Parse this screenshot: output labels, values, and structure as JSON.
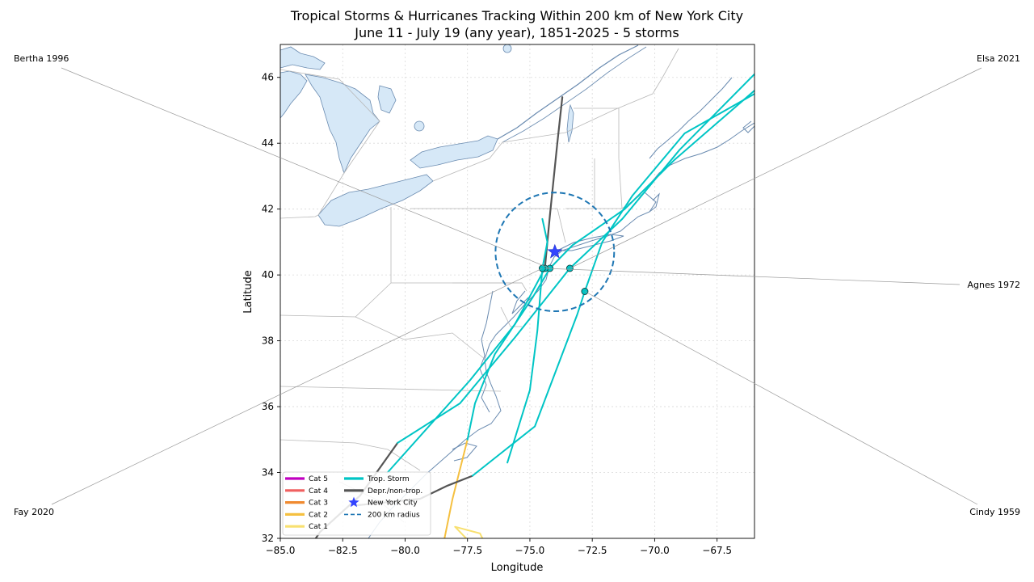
{
  "title": {
    "line1": "Tropical Storms & Hurricanes Tracking Within 200 km of New York City",
    "line2": "June 11 - July 19 (any year), 1851-2025  -  5 storms"
  },
  "axes": {
    "xlabel": "Longitude",
    "ylabel": "Latitude",
    "xlim": [
      -85.0,
      -66.0
    ],
    "ylim": [
      32.0,
      47.0
    ],
    "xticks": [
      {
        "value": -85.0,
        "label": "−85.0"
      },
      {
        "value": -82.5,
        "label": "−82.5"
      },
      {
        "value": -80.0,
        "label": "−80.0"
      },
      {
        "value": -77.5,
        "label": "−77.5"
      },
      {
        "value": -75.0,
        "label": "−75.0"
      },
      {
        "value": -72.5,
        "label": "−72.5"
      },
      {
        "value": -70.0,
        "label": "−70.0"
      },
      {
        "value": -67.5,
        "label": "−67.5"
      }
    ],
    "yticks": [
      {
        "value": 32,
        "label": "32"
      },
      {
        "value": 34,
        "label": "34"
      },
      {
        "value": 36,
        "label": "36"
      },
      {
        "value": 38,
        "label": "38"
      },
      {
        "value": 40,
        "label": "40"
      },
      {
        "value": 42,
        "label": "42"
      },
      {
        "value": 44,
        "label": "44"
      },
      {
        "value": 46,
        "label": "46"
      }
    ],
    "grid": true
  },
  "colors": {
    "cat5": "#c000c0",
    "cat4": "#f06060",
    "cat3": "#f08a30",
    "cat2": "#f5c040",
    "cat1": "#f8e070",
    "ts": "#00c5c5",
    "depression": "#555555",
    "nyc": "#3344ff",
    "radius": "#1f77b4",
    "water": "#d6e8f7",
    "coast": "#6a8bb0",
    "border": "#b8b8b8",
    "grid": "#d9d9d9",
    "leader": "#999999"
  },
  "nyc": {
    "lon": -74.0,
    "lat": 40.7
  },
  "radius_km": 200,
  "chart_data": {
    "type": "map",
    "title": "Tropical Storms & Hurricanes Tracking Within 200 km of New York City",
    "subtitle": "June 11 - July 19 (any year), 1851-2025  -  5 storms",
    "xlabel": "Longitude",
    "ylabel": "Latitude",
    "xlim": [
      -85.0,
      -66.0
    ],
    "ylim": [
      32.0,
      47.0
    ],
    "storms": [
      {
        "name": "Bertha 1996",
        "label_side": "left",
        "closest": [
          -74.2,
          40.2
        ],
        "segments": [
          {
            "cat": "cat1",
            "points": [
              [
                -77.1,
                31.0
              ],
              [
                -77.3,
                31.8
              ],
              [
                -78.0,
                32.35
              ],
              [
                -77.0,
                32.15
              ],
              [
                -76.9,
                32.0
              ]
            ]
          },
          {
            "cat": "cat2",
            "points": [
              [
                -78.5,
                31.7
              ],
              [
                -78.1,
                33.2
              ],
              [
                -77.5,
                35.0
              ]
            ]
          },
          {
            "cat": "ts",
            "points": [
              [
                -77.5,
                35.0
              ],
              [
                -77.2,
                36.1
              ],
              [
                -76.4,
                37.6
              ],
              [
                -74.9,
                39.3
              ],
              [
                -74.2,
                40.2
              ],
              [
                -73.3,
                40.9
              ],
              [
                -71.2,
                42.0
              ],
              [
                -69.2,
                43.5
              ],
              [
                -66.0,
                45.6
              ]
            ]
          }
        ]
      },
      {
        "name": "Elsa 2021",
        "label_side": "right",
        "closest": [
          -73.4,
          40.2
        ],
        "segments": [
          {
            "cat": "depression",
            "points": [
              [
                -84.3,
                31.2
              ],
              [
                -83.4,
                32.2
              ],
              [
                -81.8,
                33.3
              ],
              [
                -80.3,
                34.9
              ]
            ]
          },
          {
            "cat": "ts",
            "points": [
              [
                -80.3,
                34.9
              ],
              [
                -77.8,
                36.1
              ],
              [
                -75.6,
                38.1
              ],
              [
                -73.4,
                40.2
              ],
              [
                -71.3,
                41.7
              ],
              [
                -69.0,
                43.8
              ],
              [
                -66.0,
                46.1
              ]
            ]
          }
        ]
      },
      {
        "name": "Agnes 1972",
        "label_side": "right",
        "closest": [
          -74.4,
          40.2
        ],
        "segments": [
          {
            "cat": "ts",
            "points": [
              [
                -80.7,
                34.0
              ],
              [
                -77.4,
                36.8
              ],
              [
                -75.6,
                38.5
              ],
              [
                -74.4,
                40.2
              ]
            ]
          },
          {
            "cat": "depression",
            "points": [
              [
                -74.4,
                40.2
              ],
              [
                -74.2,
                41.8
              ],
              [
                -73.9,
                44.0
              ],
              [
                -73.7,
                45.4
              ]
            ]
          }
        ]
      },
      {
        "name": "Fay 2020",
        "label_side": "left",
        "closest": [
          -74.5,
          40.2
        ],
        "segments": [
          {
            "cat": "ts",
            "points": [
              [
                -75.9,
                34.3
              ],
              [
                -75.0,
                36.5
              ],
              [
                -74.7,
                38.3
              ],
              [
                -74.5,
                40.2
              ],
              [
                -74.3,
                41.0
              ],
              [
                -74.5,
                41.7
              ]
            ]
          }
        ]
      },
      {
        "name": "Cindy 1959",
        "label_side": "right",
        "closest": [
          -72.8,
          39.5
        ],
        "segments": [
          {
            "cat": "depression",
            "points": [
              [
                -82.0,
                33.0
              ],
              [
                -79.4,
                33.2
              ],
              [
                -78.3,
                33.6
              ],
              [
                -77.3,
                33.9
              ]
            ]
          },
          {
            "cat": "ts",
            "points": [
              [
                -77.3,
                33.9
              ],
              [
                -74.8,
                35.4
              ],
              [
                -73.1,
                38.8
              ],
              [
                -72.8,
                39.5
              ],
              [
                -72.1,
                41.0
              ],
              [
                -70.9,
                42.4
              ],
              [
                -68.8,
                44.3
              ],
              [
                -66.0,
                45.5
              ]
            ]
          }
        ]
      }
    ],
    "legend": {
      "placement": "lower-left",
      "items": [
        {
          "label": "Cat 5",
          "type": "line",
          "color": "#c000c0"
        },
        {
          "label": "Cat 4",
          "type": "line",
          "color": "#f06060"
        },
        {
          "label": "Cat 3",
          "type": "line",
          "color": "#f08a30"
        },
        {
          "label": "Cat 2",
          "type": "line",
          "color": "#f5c040"
        },
        {
          "label": "Cat 1",
          "type": "line",
          "color": "#f8e070"
        },
        {
          "label": "Trop. Storm",
          "type": "line",
          "color": "#00c5c5"
        },
        {
          "label": "Depr./non-trop.",
          "type": "line",
          "color": "#555555"
        },
        {
          "label": "New York City",
          "type": "star",
          "color": "#3344ff"
        },
        {
          "label": "200 km radius",
          "type": "dashed",
          "color": "#1f77b4"
        }
      ]
    }
  }
}
